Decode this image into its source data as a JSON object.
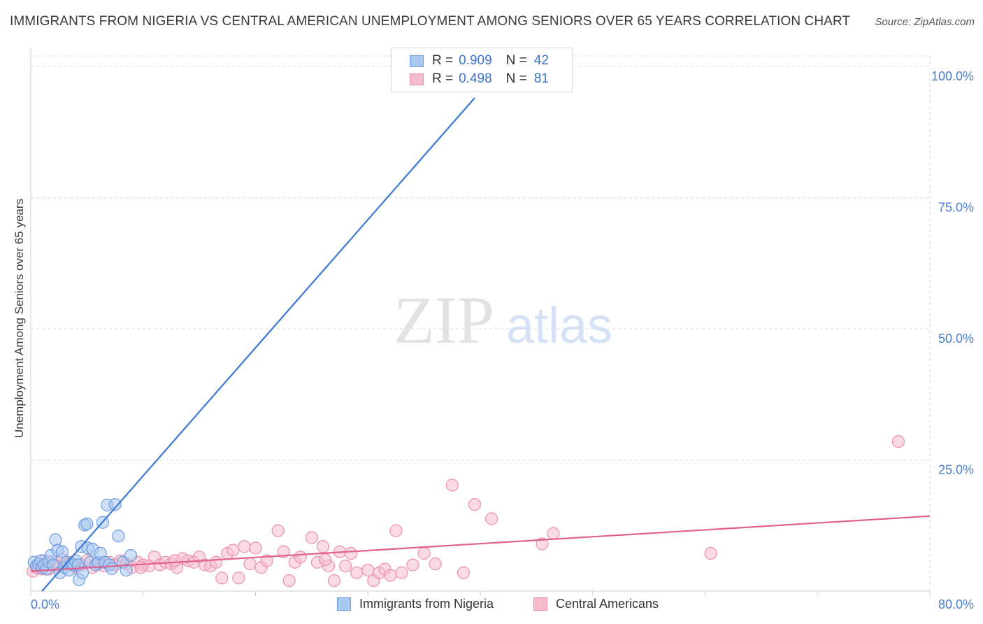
{
  "header": {
    "title": "IMMIGRANTS FROM NIGERIA VS CENTRAL AMERICAN UNEMPLOYMENT AMONG SENIORS OVER 65 YEARS CORRELATION CHART",
    "source": "Source: ZipAtlas.com"
  },
  "watermark": {
    "zip": "ZIP",
    "atlas": "atlas"
  },
  "colors": {
    "blue_fill": "#a9c8f0",
    "blue_stroke": "#6b9ae0",
    "blue_line": "#3a78d4",
    "pink_fill": "#f6bccd",
    "pink_stroke": "#ec8fab",
    "pink_line": "#e0628d",
    "axis_text": "#4a7fd0",
    "grid": "#dcdcdc"
  },
  "legend": {
    "r_label": "R =",
    "n_label": "N =",
    "series1": {
      "r": "0.909",
      "n": "42"
    },
    "series2": {
      "r": "0.498",
      "n": "81"
    }
  },
  "chart_data": {
    "type": "scatter",
    "title": "IMMIGRANTS FROM NIGERIA VS CENTRAL AMERICAN UNEMPLOYMENT AMONG SENIORS OVER 65 YEARS CORRELATION CHART",
    "xlabel": "",
    "ylabel": "Unemployment Among Seniors over 65 years",
    "xlim": [
      0,
      80
    ],
    "ylim": [
      0,
      102
    ],
    "x_tick_labels": [
      "0.0%",
      "80.0%"
    ],
    "y_ticks": [
      25,
      50,
      75,
      100
    ],
    "y_tick_labels": [
      "25.0%",
      "50.0%",
      "75.0%",
      "100.0%"
    ],
    "grid": true,
    "series": [
      {
        "name": "Immigrants from Nigeria",
        "r": 0.909,
        "n": 42,
        "trend": {
          "x0": 1.0,
          "y0": 0.0,
          "x1": 39.5,
          "y1": 94.0
        },
        "points": [
          [
            0.3,
            5.5
          ],
          [
            0.5,
            4.8
          ],
          [
            0.7,
            5.2
          ],
          [
            0.9,
            5.8
          ],
          [
            1.0,
            4.5
          ],
          [
            1.2,
            5.0
          ],
          [
            1.4,
            4.2
          ],
          [
            1.6,
            5.6
          ],
          [
            1.8,
            6.8
          ],
          [
            2.0,
            5.0
          ],
          [
            2.2,
            9.8
          ],
          [
            2.4,
            7.8
          ],
          [
            2.6,
            3.5
          ],
          [
            2.8,
            7.5
          ],
          [
            3.0,
            4.5
          ],
          [
            3.2,
            5.5
          ],
          [
            3.4,
            4.0
          ],
          [
            3.6,
            5.2
          ],
          [
            3.8,
            5.0
          ],
          [
            4.0,
            5.8
          ],
          [
            4.2,
            5.0
          ],
          [
            4.3,
            2.2
          ],
          [
            4.5,
            8.5
          ],
          [
            4.6,
            3.5
          ],
          [
            4.8,
            12.6
          ],
          [
            5.0,
            12.8
          ],
          [
            5.1,
            8.2
          ],
          [
            5.3,
            5.5
          ],
          [
            5.5,
            8.0
          ],
          [
            5.8,
            5.0
          ],
          [
            6.0,
            5.5
          ],
          [
            6.2,
            7.2
          ],
          [
            6.4,
            13.1
          ],
          [
            6.6,
            5.5
          ],
          [
            6.8,
            16.4
          ],
          [
            7.0,
            5.0
          ],
          [
            7.2,
            4.3
          ],
          [
            7.5,
            16.5
          ],
          [
            7.8,
            10.5
          ],
          [
            8.2,
            5.5
          ],
          [
            8.5,
            4.0
          ],
          [
            8.9,
            6.8
          ]
        ]
      },
      {
        "name": "Central Americans",
        "r": 0.498,
        "n": 81,
        "trend": {
          "x0": 0.0,
          "y0": 3.8,
          "x1": 80.0,
          "y1": 14.3
        },
        "points": [
          [
            0.2,
            3.8
          ],
          [
            0.5,
            4.5
          ],
          [
            0.8,
            5.0
          ],
          [
            1.2,
            5.8
          ],
          [
            1.6,
            4.2
          ],
          [
            2.0,
            5.5
          ],
          [
            2.5,
            4.8
          ],
          [
            3.0,
            5.0
          ],
          [
            3.5,
            5.5
          ],
          [
            4.0,
            4.6
          ],
          [
            4.5,
            5.0
          ],
          [
            5.0,
            5.8
          ],
          [
            5.5,
            4.5
          ],
          [
            6.0,
            5.2
          ],
          [
            6.5,
            4.8
          ],
          [
            7.0,
            5.5
          ],
          [
            7.5,
            5.0
          ],
          [
            8.0,
            5.8
          ],
          [
            8.5,
            5.2
          ],
          [
            9.0,
            4.5
          ],
          [
            9.5,
            5.5
          ],
          [
            10.0,
            5.0
          ],
          [
            10.5,
            4.8
          ],
          [
            11.0,
            6.5
          ],
          [
            11.5,
            5.0
          ],
          [
            12.0,
            5.5
          ],
          [
            12.5,
            5.2
          ],
          [
            13.0,
            4.5
          ],
          [
            13.5,
            6.2
          ],
          [
            14.0,
            5.8
          ],
          [
            14.5,
            5.5
          ],
          [
            15.0,
            6.5
          ],
          [
            15.5,
            5.0
          ],
          [
            16.0,
            4.8
          ],
          [
            16.5,
            5.5
          ],
          [
            17.0,
            2.5
          ],
          [
            17.5,
            7.2
          ],
          [
            18.0,
            7.8
          ],
          [
            18.5,
            2.5
          ],
          [
            19.0,
            8.5
          ],
          [
            19.5,
            5.2
          ],
          [
            20.0,
            8.2
          ],
          [
            20.5,
            4.5
          ],
          [
            21.0,
            5.8
          ],
          [
            22.0,
            11.5
          ],
          [
            22.5,
            7.5
          ],
          [
            23.0,
            2.0
          ],
          [
            23.5,
            5.5
          ],
          [
            24.0,
            6.5
          ],
          [
            25.0,
            10.2
          ],
          [
            25.5,
            5.5
          ],
          [
            26.0,
            8.5
          ],
          [
            26.5,
            4.8
          ],
          [
            27.0,
            2.0
          ],
          [
            27.5,
            7.5
          ],
          [
            28.0,
            4.8
          ],
          [
            28.5,
            7.2
          ],
          [
            29.0,
            3.5
          ],
          [
            30.0,
            4.0
          ],
          [
            30.5,
            2.0
          ],
          [
            31.0,
            3.5
          ],
          [
            31.5,
            4.2
          ],
          [
            32.0,
            3.0
          ],
          [
            32.5,
            11.5
          ],
          [
            33.0,
            3.5
          ],
          [
            34.0,
            5.0
          ],
          [
            35.0,
            7.2
          ],
          [
            36.0,
            5.2
          ],
          [
            37.5,
            20.2
          ],
          [
            38.5,
            3.5
          ],
          [
            39.5,
            16.5
          ],
          [
            41.0,
            13.8
          ],
          [
            45.5,
            9.0
          ],
          [
            46.5,
            11.0
          ],
          [
            60.5,
            7.2
          ],
          [
            77.2,
            28.5
          ],
          [
            1.0,
            4.2
          ],
          [
            2.8,
            6.0
          ],
          [
            9.8,
            4.5
          ],
          [
            12.8,
            5.8
          ],
          [
            26.2,
            6.0
          ]
        ]
      }
    ]
  },
  "bottom_legend": {
    "series1_label": "Immigrants from Nigeria",
    "series2_label": "Central Americans"
  }
}
